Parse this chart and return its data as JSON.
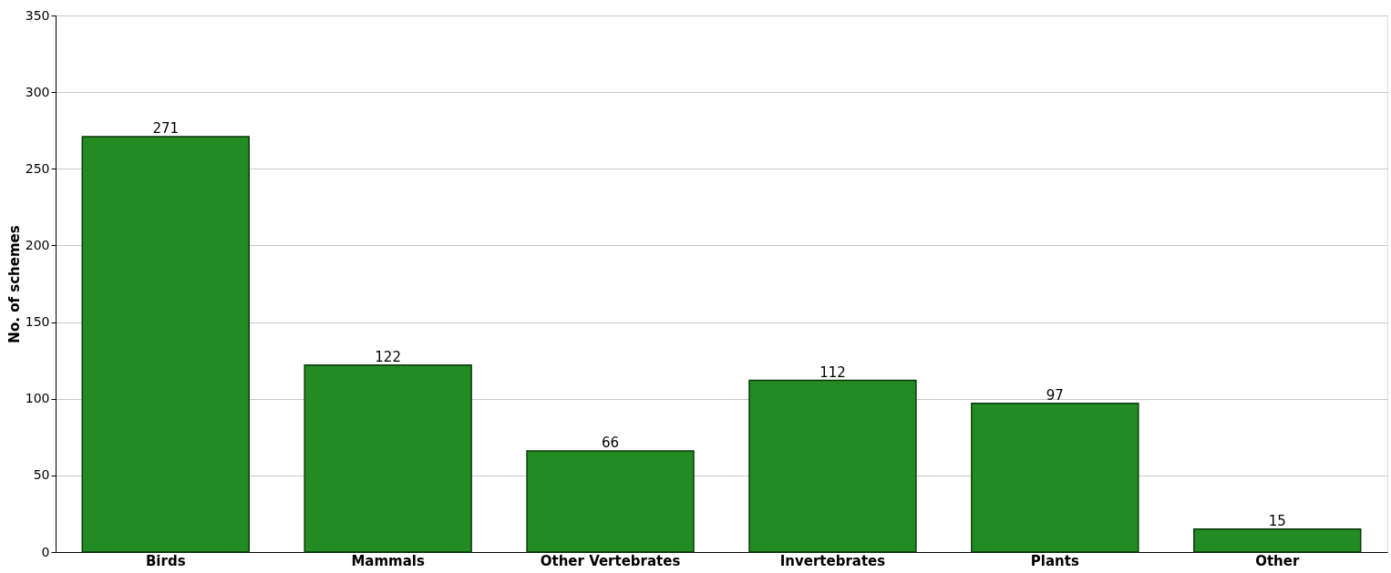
{
  "chart_data": {
    "type": "bar",
    "ylabel": "No. of schemes",
    "categories": [
      "Birds",
      "Mammals",
      "Other Vertebrates",
      "Invertebrates",
      "Plants",
      "Other"
    ],
    "values": [
      271,
      122,
      66,
      112,
      97,
      15
    ],
    "color": "#228b22",
    "ylim": [
      0,
      350
    ],
    "yticks": [
      0,
      50,
      100,
      150,
      200,
      250,
      300,
      350
    ],
    "grid": "y",
    "data_labels": true
  }
}
